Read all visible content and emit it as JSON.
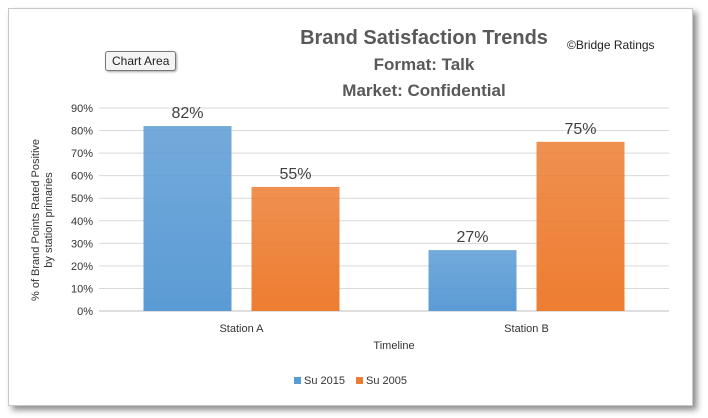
{
  "copyright": "©Bridge Ratings",
  "chart_area_label": "Chart Area",
  "chart_data": {
    "type": "bar",
    "title": [
      "Brand Satisfaction Trends",
      "Format: Talk",
      "Market: Confidential"
    ],
    "ylabel": [
      "% of Brand Points Rated Positive",
      "by station primaries"
    ],
    "xlabel": "Timeline",
    "categories": [
      "Station A",
      "Station B"
    ],
    "ylim": [
      0,
      90
    ],
    "yticks": [
      "0%",
      "10%",
      "20%",
      "30%",
      "40%",
      "50%",
      "60%",
      "70%",
      "80%",
      "90%"
    ],
    "grid": true,
    "legend_position": "bottom",
    "series": [
      {
        "name": "Su 2015",
        "color": "#5b9bd5",
        "values": [
          82,
          27
        ],
        "labels": [
          "82%",
          "27%"
        ]
      },
      {
        "name": "Su 2005",
        "color": "#ed7d31",
        "values": [
          55,
          75
        ],
        "labels": [
          "55%",
          "75%"
        ]
      }
    ]
  }
}
